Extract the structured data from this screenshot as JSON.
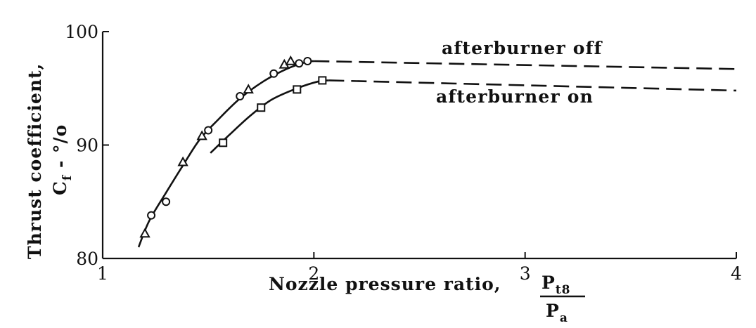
{
  "chart_data": {
    "type": "line",
    "title": "",
    "xlabel": "Nozzle pressure ratio,",
    "xlabel_fraction": {
      "numerator": "P",
      "numerator_sub": "t8",
      "denominator": "P",
      "denominator_sub": "a"
    },
    "ylabel_line1": "Thrust coefficient,",
    "ylabel_line2": {
      "symbol": "C",
      "sub": "f",
      "rest": " - °/o"
    },
    "xlim": [
      1,
      4
    ],
    "ylim": [
      80,
      100
    ],
    "xticks": [
      "1",
      "2",
      "3",
      "4"
    ],
    "yticks": [
      "80",
      "90",
      "100"
    ],
    "grid": false,
    "series": [
      {
        "name": "afterburner off",
        "solid": [
          [
            1.17,
            81.0
          ],
          [
            1.22,
            83.3
          ],
          [
            1.3,
            85.8
          ],
          [
            1.38,
            88.2
          ],
          [
            1.46,
            90.5
          ],
          [
            1.55,
            92.3
          ],
          [
            1.65,
            94.1
          ],
          [
            1.76,
            95.6
          ],
          [
            1.87,
            96.7
          ],
          [
            1.96,
            97.3
          ],
          [
            2.0,
            97.4
          ]
        ],
        "dashed": [
          [
            2.0,
            97.4
          ],
          [
            4.0,
            96.7
          ]
        ],
        "circles": [
          [
            1.23,
            83.8
          ],
          [
            1.3,
            85.0
          ],
          [
            1.5,
            91.3
          ],
          [
            1.65,
            94.3
          ],
          [
            1.81,
            96.3
          ],
          [
            1.93,
            97.2
          ],
          [
            1.97,
            97.4
          ]
        ],
        "triangles": [
          [
            1.2,
            82.2
          ],
          [
            1.38,
            88.5
          ],
          [
            1.47,
            90.8
          ],
          [
            1.69,
            94.9
          ],
          [
            1.86,
            97.1
          ],
          [
            1.89,
            97.4
          ]
        ]
      },
      {
        "name": "afterburner on",
        "solid": [
          [
            1.51,
            89.3
          ],
          [
            1.6,
            90.9
          ],
          [
            1.7,
            92.6
          ],
          [
            1.8,
            94.0
          ],
          [
            1.92,
            95.0
          ],
          [
            2.02,
            95.6
          ],
          [
            2.07,
            95.7
          ]
        ],
        "dashed": [
          [
            2.07,
            95.7
          ],
          [
            4.0,
            94.8
          ]
        ],
        "squares": [
          [
            1.57,
            90.2
          ],
          [
            1.75,
            93.3
          ],
          [
            1.92,
            94.9
          ],
          [
            2.04,
            95.7
          ]
        ]
      }
    ]
  }
}
